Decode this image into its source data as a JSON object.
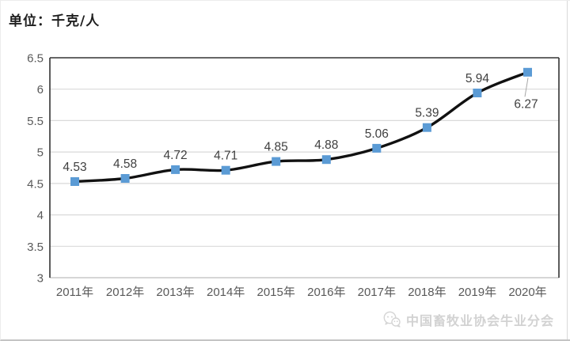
{
  "page": {
    "unit_label": "单位：千克/人"
  },
  "watermark": {
    "icon": "wechat-icon",
    "text": "中国畜牧业协会牛业分会"
  },
  "colors": {
    "line": "#111111",
    "marker": "#5b9bd5",
    "grid": "#d9d9d9",
    "frame_dark": "#333333",
    "axis_bottom": "#c9c9c9",
    "tick_text": "#595959",
    "data_label_text": "#3f3f3f",
    "leader_line": "#a6a6a6"
  },
  "chart_data": {
    "type": "line",
    "title": "单位：千克/人",
    "categories": [
      "2011年",
      "2012年",
      "2013年",
      "2014年",
      "2015年",
      "2016年",
      "2017年",
      "2018年",
      "2019年",
      "2020年"
    ],
    "values": [
      4.53,
      4.58,
      4.72,
      4.71,
      4.85,
      4.88,
      5.06,
      5.39,
      5.94,
      6.27
    ],
    "data_labels": [
      "4.53",
      "4.58",
      "4.72",
      "4.71",
      "4.85",
      "4.88",
      "5.06",
      "5.39",
      "5.94",
      "6.27"
    ],
    "label_positions": [
      "above",
      "above",
      "above",
      "above",
      "above",
      "above",
      "above",
      "above",
      "above",
      "below-leader"
    ],
    "ylim": [
      3,
      6.5
    ],
    "yticks": [
      3,
      3.5,
      4,
      4.5,
      5,
      5.5,
      6,
      6.5
    ],
    "ytick_labels": [
      "3",
      "3.5",
      "4",
      "4.5",
      "5",
      "5.5",
      "6",
      "6.5"
    ],
    "grid": true,
    "legend": "none",
    "marker": "square",
    "smooth": true
  }
}
